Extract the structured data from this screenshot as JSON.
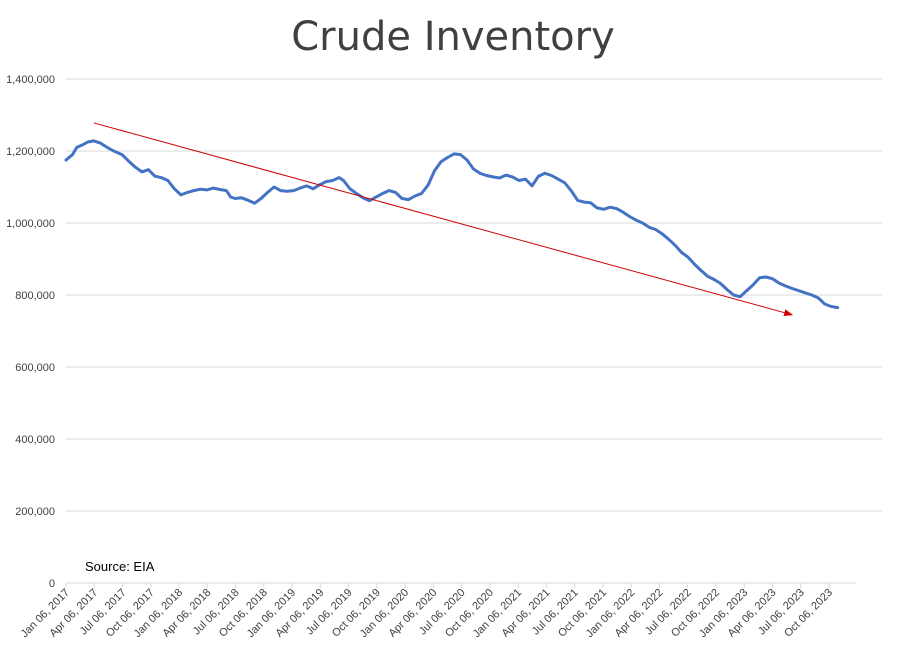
{
  "chart_data": {
    "type": "line",
    "title": "Crude Inventory",
    "annotation": "Source: EIA",
    "xlabel": "",
    "ylabel": "",
    "ylim": [
      0,
      1400000
    ],
    "yticks": [
      0,
      200000,
      400000,
      600000,
      800000,
      1000000,
      1200000,
      1400000
    ],
    "ytick_labels": [
      "0",
      "200,000",
      "400,000",
      "600,000",
      "800,000",
      "1,000,000",
      "1,200,000",
      "1,400,000"
    ],
    "xlim": [
      "2017-01-06",
      "2023-10-06"
    ],
    "xtick_labels": [
      "Jan 06, 2017",
      "Apr 06, 2017",
      "Jul 06, 2017",
      "Oct 06, 2017",
      "Jan 06, 2018",
      "Apr 06, 2018",
      "Jul 06, 2018",
      "Oct 06, 2018",
      "Jan 06, 2019",
      "Apr 06, 2019",
      "Jul 06, 2019",
      "Oct 06, 2019",
      "Jan 06, 2020",
      "Apr 06, 2020",
      "Jul 06, 2020",
      "Oct 06, 2020",
      "Jan 06, 2021",
      "Apr 06, 2021",
      "Jul 06, 2021",
      "Oct 06, 2021",
      "Jan 06, 2022",
      "Apr 06, 2022",
      "Jul 06, 2022",
      "Oct 06, 2022",
      "Jan 06, 2023",
      "Apr 06, 2023",
      "Jul 06, 2023",
      "Oct 06, 2023"
    ],
    "grid": true,
    "legend": "none",
    "series": [
      {
        "color": "#4472C4",
        "points": [
          [
            "2017-01-06",
            1175000
          ],
          [
            "2017-01-27",
            1190000
          ],
          [
            "2017-02-10",
            1210000
          ],
          [
            "2017-03-03",
            1218000
          ],
          [
            "2017-03-17",
            1225000
          ],
          [
            "2017-04-06",
            1228000
          ],
          [
            "2017-04-27",
            1222000
          ],
          [
            "2017-05-19",
            1210000
          ],
          [
            "2017-06-09",
            1200000
          ],
          [
            "2017-07-06",
            1190000
          ],
          [
            "2017-07-27",
            1172000
          ],
          [
            "2017-08-18",
            1155000
          ],
          [
            "2017-09-08",
            1142000
          ],
          [
            "2017-09-29",
            1148000
          ],
          [
            "2017-10-20",
            1130000
          ],
          [
            "2017-11-10",
            1126000
          ],
          [
            "2017-12-01",
            1118000
          ],
          [
            "2017-12-22",
            1095000
          ],
          [
            "2018-01-12",
            1078000
          ],
          [
            "2018-02-02",
            1085000
          ],
          [
            "2018-02-23",
            1090000
          ],
          [
            "2018-03-16",
            1094000
          ],
          [
            "2018-04-06",
            1092000
          ],
          [
            "2018-04-27",
            1097000
          ],
          [
            "2018-05-18",
            1093000
          ],
          [
            "2018-06-08",
            1090000
          ],
          [
            "2018-06-22",
            1072000
          ],
          [
            "2018-07-06",
            1068000
          ],
          [
            "2018-07-27",
            1070000
          ],
          [
            "2018-08-17",
            1063000
          ],
          [
            "2018-09-07",
            1055000
          ],
          [
            "2018-09-28",
            1068000
          ],
          [
            "2018-10-19",
            1085000
          ],
          [
            "2018-11-09",
            1100000
          ],
          [
            "2018-11-30",
            1090000
          ],
          [
            "2018-12-21",
            1088000
          ],
          [
            "2019-01-11",
            1090000
          ],
          [
            "2019-02-01",
            1097000
          ],
          [
            "2019-02-22",
            1103000
          ],
          [
            "2019-03-15",
            1095000
          ],
          [
            "2019-04-05",
            1106000
          ],
          [
            "2019-04-26",
            1115000
          ],
          [
            "2019-05-17",
            1118000
          ],
          [
            "2019-06-07",
            1126000
          ],
          [
            "2019-06-21",
            1118000
          ],
          [
            "2019-07-12",
            1095000
          ],
          [
            "2019-08-02",
            1082000
          ],
          [
            "2019-08-23",
            1070000
          ],
          [
            "2019-09-13",
            1062000
          ],
          [
            "2019-10-04",
            1072000
          ],
          [
            "2019-10-25",
            1082000
          ],
          [
            "2019-11-15",
            1090000
          ],
          [
            "2019-12-06",
            1085000
          ],
          [
            "2019-12-27",
            1068000
          ],
          [
            "2020-01-17",
            1065000
          ],
          [
            "2020-02-07",
            1075000
          ],
          [
            "2020-02-28",
            1082000
          ],
          [
            "2020-03-20",
            1105000
          ],
          [
            "2020-04-10",
            1145000
          ],
          [
            "2020-05-01",
            1170000
          ],
          [
            "2020-05-22",
            1182000
          ],
          [
            "2020-06-12",
            1192000
          ],
          [
            "2020-07-03",
            1190000
          ],
          [
            "2020-07-24",
            1175000
          ],
          [
            "2020-08-14",
            1150000
          ],
          [
            "2020-09-04",
            1138000
          ],
          [
            "2020-09-25",
            1132000
          ],
          [
            "2020-10-16",
            1128000
          ],
          [
            "2020-11-06",
            1125000
          ],
          [
            "2020-11-27",
            1133000
          ],
          [
            "2020-12-18",
            1128000
          ],
          [
            "2021-01-08",
            1118000
          ],
          [
            "2021-01-29",
            1122000
          ],
          [
            "2021-02-19",
            1103000
          ],
          [
            "2021-03-12",
            1130000
          ],
          [
            "2021-04-02",
            1138000
          ],
          [
            "2021-04-23",
            1132000
          ],
          [
            "2021-05-14",
            1122000
          ],
          [
            "2021-06-04",
            1112000
          ],
          [
            "2021-06-25",
            1090000
          ],
          [
            "2021-07-16",
            1063000
          ],
          [
            "2021-08-06",
            1058000
          ],
          [
            "2021-08-27",
            1056000
          ],
          [
            "2021-09-17",
            1042000
          ],
          [
            "2021-10-08",
            1038000
          ],
          [
            "2021-10-29",
            1044000
          ],
          [
            "2021-11-19",
            1040000
          ],
          [
            "2021-12-10",
            1030000
          ],
          [
            "2021-12-31",
            1018000
          ],
          [
            "2022-01-21",
            1008000
          ],
          [
            "2022-02-11",
            1000000
          ],
          [
            "2022-03-04",
            988000
          ],
          [
            "2022-03-25",
            982000
          ],
          [
            "2022-04-15",
            970000
          ],
          [
            "2022-05-06",
            955000
          ],
          [
            "2022-05-27",
            938000
          ],
          [
            "2022-06-17",
            918000
          ],
          [
            "2022-07-08",
            905000
          ],
          [
            "2022-07-29",
            885000
          ],
          [
            "2022-08-19",
            868000
          ],
          [
            "2022-09-09",
            852000
          ],
          [
            "2022-09-30",
            843000
          ],
          [
            "2022-10-21",
            832000
          ],
          [
            "2022-11-11",
            815000
          ],
          [
            "2022-12-02",
            800000
          ],
          [
            "2022-12-23",
            795000
          ],
          [
            "2023-01-13",
            812000
          ],
          [
            "2023-02-03",
            828000
          ],
          [
            "2023-02-24",
            848000
          ],
          [
            "2023-03-17",
            850000
          ],
          [
            "2023-04-07",
            845000
          ],
          [
            "2023-04-28",
            833000
          ],
          [
            "2023-05-19",
            825000
          ],
          [
            "2023-06-09",
            818000
          ],
          [
            "2023-06-30",
            812000
          ],
          [
            "2023-07-21",
            806000
          ],
          [
            "2023-08-11",
            800000
          ],
          [
            "2023-09-01",
            792000
          ],
          [
            "2023-09-22",
            775000
          ],
          [
            "2023-10-13",
            768000
          ],
          [
            "2023-11-03",
            765000
          ]
        ]
      }
    ],
    "trend_arrow": {
      "color": "#D00000",
      "from": [
        "2017-04-06",
        1278000
      ],
      "to": [
        "2023-06-09",
        745000
      ]
    }
  }
}
